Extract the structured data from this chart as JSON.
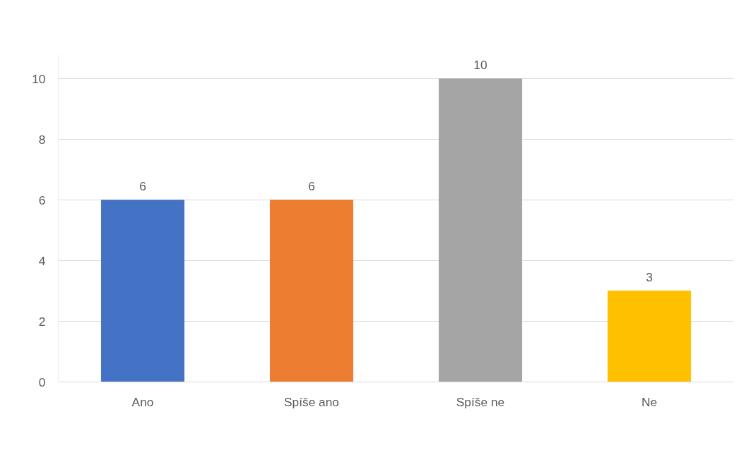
{
  "chart_data": {
    "type": "bar",
    "categories": [
      "Ano",
      "Spíše ano",
      "Spíše ne",
      "Ne"
    ],
    "values": [
      6,
      6,
      10,
      3
    ],
    "colors": [
      "#4472c4",
      "#ed7d31",
      "#a5a5a5",
      "#ffc000"
    ],
    "ylim": [
      0,
      10.8
    ],
    "yticks": [
      0,
      2,
      4,
      6,
      8,
      10
    ],
    "grid": "y",
    "data_labels": true
  }
}
